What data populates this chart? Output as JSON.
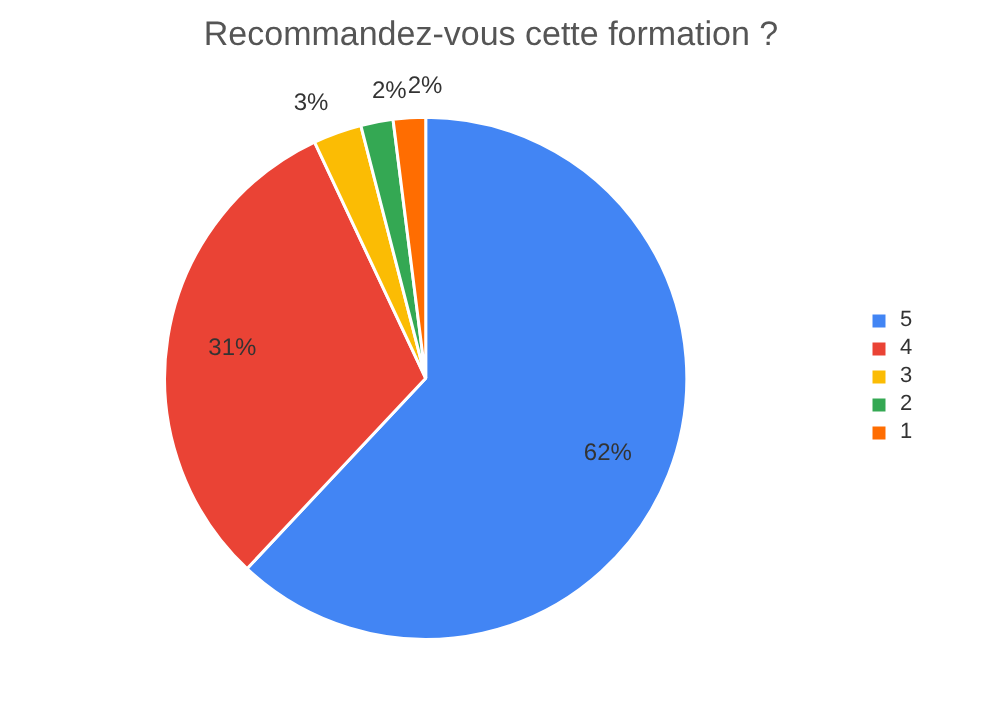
{
  "chart_data": {
    "type": "pie",
    "title": "Recommandez-vous cette formation ?",
    "categories": [
      "5",
      "4",
      "3",
      "2",
      "1"
    ],
    "values": [
      62,
      31,
      3,
      2,
      2
    ],
    "colors": [
      "#4285f4",
      "#ea4335",
      "#fbbc04",
      "#34a853",
      "#ff6d01"
    ],
    "value_labels": [
      "62%",
      "31%",
      "3%",
      "2%",
      "2%"
    ],
    "legend": "right"
  }
}
